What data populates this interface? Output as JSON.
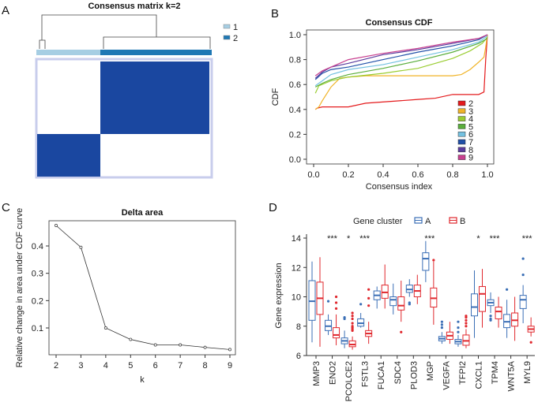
{
  "panel_labels": [
    "A",
    "B",
    "C",
    "D"
  ],
  "chart_data": [
    {
      "type": "heatmap",
      "title": "Consensus matrix k=2",
      "legend": [
        {
          "label": "1",
          "color": "#a6cee3"
        },
        {
          "label": "2",
          "color": "#1f78b4"
        }
      ],
      "fill_color": "#1a47a0",
      "clusters": [
        "1",
        "2"
      ]
    },
    {
      "type": "line",
      "title": "Consensus CDF",
      "xlabel": "Consensus index",
      "ylabel": "CDF",
      "xlim": [
        0,
        1
      ],
      "ylim": [
        0,
        1
      ],
      "xticks": [
        "0.0",
        "0.2",
        "0.4",
        "0.6",
        "0.8",
        "1.0"
      ],
      "yticks": [
        "0.0",
        "0.2",
        "0.4",
        "0.6",
        "0.8",
        "1.0"
      ],
      "legend_position": "bottom-right",
      "series": [
        {
          "name": "2",
          "color": "#e41a1c",
          "points": [
            [
              0.01,
              0.4
            ],
            [
              0.02,
              0.41
            ],
            [
              0.05,
              0.42
            ],
            [
              0.2,
              0.42
            ],
            [
              0.3,
              0.45
            ],
            [
              0.5,
              0.47
            ],
            [
              0.6,
              0.48
            ],
            [
              0.7,
              0.49
            ],
            [
              0.8,
              0.52
            ],
            [
              0.95,
              0.52
            ],
            [
              0.98,
              0.54
            ],
            [
              0.99,
              0.8
            ],
            [
              1.0,
              1.0
            ]
          ]
        },
        {
          "name": "3",
          "color": "#f0b429",
          "points": [
            [
              0.01,
              0.4
            ],
            [
              0.03,
              0.42
            ],
            [
              0.05,
              0.47
            ],
            [
              0.1,
              0.58
            ],
            [
              0.15,
              0.65
            ],
            [
              0.2,
              0.66
            ],
            [
              0.3,
              0.67
            ],
            [
              0.8,
              0.67
            ],
            [
              0.85,
              0.68
            ],
            [
              0.9,
              0.72
            ],
            [
              0.95,
              0.78
            ],
            [
              0.98,
              0.82
            ],
            [
              0.99,
              0.9
            ],
            [
              1.0,
              1.0
            ]
          ]
        },
        {
          "name": "4",
          "color": "#9acd32",
          "points": [
            [
              0.01,
              0.53
            ],
            [
              0.03,
              0.59
            ],
            [
              0.1,
              0.63
            ],
            [
              0.2,
              0.66
            ],
            [
              0.4,
              0.69
            ],
            [
              0.6,
              0.73
            ],
            [
              0.8,
              0.81
            ],
            [
              0.9,
              0.87
            ],
            [
              0.97,
              0.93
            ],
            [
              1.0,
              0.98
            ]
          ]
        },
        {
          "name": "5",
          "color": "#5aae3c",
          "points": [
            [
              0.01,
              0.58
            ],
            [
              0.05,
              0.61
            ],
            [
              0.1,
              0.64
            ],
            [
              0.2,
              0.68
            ],
            [
              0.4,
              0.73
            ],
            [
              0.6,
              0.79
            ],
            [
              0.8,
              0.86
            ],
            [
              0.95,
              0.93
            ],
            [
              1.0,
              0.97
            ]
          ]
        },
        {
          "name": "6",
          "color": "#74c1e0",
          "points": [
            [
              0.01,
              0.59
            ],
            [
              0.05,
              0.63
            ],
            [
              0.1,
              0.68
            ],
            [
              0.2,
              0.72
            ],
            [
              0.4,
              0.76
            ],
            [
              0.6,
              0.82
            ],
            [
              0.8,
              0.88
            ],
            [
              0.95,
              0.94
            ],
            [
              1.0,
              0.99
            ]
          ]
        },
        {
          "name": "7",
          "color": "#2150a8",
          "points": [
            [
              0.01,
              0.64
            ],
            [
              0.05,
              0.69
            ],
            [
              0.1,
              0.72
            ],
            [
              0.2,
              0.74
            ],
            [
              0.4,
              0.8
            ],
            [
              0.6,
              0.86
            ],
            [
              0.8,
              0.91
            ],
            [
              0.95,
              0.96
            ],
            [
              1.0,
              1.0
            ]
          ]
        },
        {
          "name": "8",
          "color": "#5b3c9e",
          "points": [
            [
              0.01,
              0.65
            ],
            [
              0.05,
              0.7
            ],
            [
              0.1,
              0.74
            ],
            [
              0.2,
              0.77
            ],
            [
              0.4,
              0.84
            ],
            [
              0.6,
              0.88
            ],
            [
              0.8,
              0.93
            ],
            [
              0.95,
              0.97
            ],
            [
              1.0,
              1.0
            ]
          ]
        },
        {
          "name": "9",
          "color": "#c8408f",
          "points": [
            [
              0.01,
              0.67
            ],
            [
              0.05,
              0.71
            ],
            [
              0.1,
              0.74
            ],
            [
              0.2,
              0.8
            ],
            [
              0.4,
              0.85
            ],
            [
              0.6,
              0.89
            ],
            [
              0.8,
              0.94
            ],
            [
              0.95,
              0.97
            ],
            [
              1.0,
              1.0
            ]
          ]
        }
      ]
    },
    {
      "type": "line",
      "title": "Delta area",
      "xlabel": "k",
      "ylabel": "Relative change in area under CDF curve",
      "x": [
        2,
        3,
        4,
        5,
        6,
        7,
        8,
        9
      ],
      "values": [
        0.475,
        0.395,
        0.1,
        0.058,
        0.038,
        0.038,
        0.029,
        0.021
      ],
      "yticks": [
        "0.1",
        "0.2",
        "0.3",
        "0.4"
      ],
      "ylim": [
        0.005,
        0.49
      ]
    },
    {
      "type": "box",
      "xlabel": "",
      "ylabel": "Gene expression",
      "ylim": [
        6,
        14
      ],
      "yticks": [
        "6",
        "8",
        "10",
        "12",
        "14"
      ],
      "legend_title": "Gene cluster",
      "legend_position": "top",
      "series": [
        {
          "name": "A",
          "color": "#3b6fb6"
        },
        {
          "name": "B",
          "color": "#e0282e"
        }
      ],
      "categories": [
        "MMP3",
        "ENO2",
        "PCOLCE2",
        "FSTL3",
        "FUCA1",
        "SDC4",
        "PLOD3",
        "MGP",
        "VEGFA",
        "TFPI2",
        "CXCL1",
        "TPM4",
        "WNT5A",
        "MYL9"
      ],
      "significance": [
        "",
        "***",
        "*",
        "***",
        "",
        "",
        "",
        "***",
        "",
        "",
        "*",
        "***",
        "",
        "***"
      ],
      "boxes_A": [
        [
          6.9,
          8.4,
          9.7,
          11.1,
          12.4
        ],
        [
          7.4,
          7.7,
          8.0,
          8.4,
          8.8
        ],
        [
          6.5,
          6.8,
          7.0,
          7.2,
          7.7
        ],
        [
          7.9,
          8.0,
          8.2,
          8.5,
          8.9
        ],
        [
          9.2,
          9.8,
          10.1,
          10.4,
          10.7
        ],
        [
          8.8,
          9.4,
          9.8,
          10.0,
          10.9
        ],
        [
          10.0,
          10.3,
          10.5,
          10.8,
          11.2
        ],
        [
          11.0,
          11.8,
          12.6,
          13.0,
          13.8
        ],
        [
          6.8,
          7.0,
          7.15,
          7.3,
          7.6
        ],
        [
          6.6,
          6.8,
          6.95,
          7.1,
          7.4
        ],
        [
          7.2,
          8.7,
          9.3,
          10.2,
          11.8
        ],
        [
          8.9,
          9.4,
          9.6,
          9.8,
          10.3
        ],
        [
          7.2,
          7.9,
          8.3,
          8.8,
          9.8
        ],
        [
          8.2,
          9.2,
          9.8,
          10.1,
          10.8
        ]
      ],
      "outliers_A": [
        [],
        [
          9.7
        ],
        [
          8.5,
          8.6
        ],
        [
          9.5
        ],
        [],
        [],
        [
          9.5,
          9.6
        ],
        [],
        [
          7.9,
          8.1,
          8.3
        ],
        [
          7.6,
          7.9,
          8.3
        ],
        [],
        [
          8.4,
          8.5,
          8.7
        ],
        [
          10.5
        ],
        [
          11.5,
          12.6
        ]
      ],
      "boxes_B": [
        [
          6.6,
          8.8,
          9.9,
          11.0,
          12.7
        ],
        [
          6.7,
          7.2,
          7.4,
          7.9,
          8.8
        ],
        [
          6.4,
          6.6,
          6.75,
          7.0,
          7.3
        ],
        [
          6.8,
          7.3,
          7.5,
          7.7,
          8.3
        ],
        [
          9.2,
          9.9,
          10.3,
          10.8,
          12.2
        ],
        [
          8.3,
          9.1,
          9.4,
          10.0,
          11.1
        ],
        [
          9.5,
          10.0,
          10.4,
          10.8,
          11.5
        ],
        [
          8.1,
          9.3,
          9.9,
          10.6,
          12.4
        ],
        [
          6.8,
          7.1,
          7.35,
          7.6,
          8.3
        ],
        [
          6.5,
          6.7,
          7.0,
          7.4,
          7.8
        ],
        [
          7.9,
          9.0,
          10.2,
          10.7,
          11.9
        ],
        [
          7.9,
          8.5,
          9.0,
          9.3,
          10.0
        ],
        [
          7.0,
          8.0,
          8.4,
          8.9,
          10.0
        ],
        [
          7.3,
          7.6,
          7.8,
          8.0,
          8.6
        ]
      ],
      "outliers_B": [
        [],
        [
          9.2,
          9.6,
          10.0
        ],
        [
          7.7,
          7.8,
          7.9,
          8.0,
          8.2,
          8.5,
          8.7,
          8.9
        ],
        [
          9.4,
          9.9,
          10.5
        ],
        [],
        [
          7.6
        ],
        [],
        [
          12.5
        ],
        [],
        [
          8.0,
          8.2,
          8.4,
          8.6,
          8.7
        ],
        [],
        [],
        [],
        [
          6.9
        ]
      ]
    }
  ]
}
